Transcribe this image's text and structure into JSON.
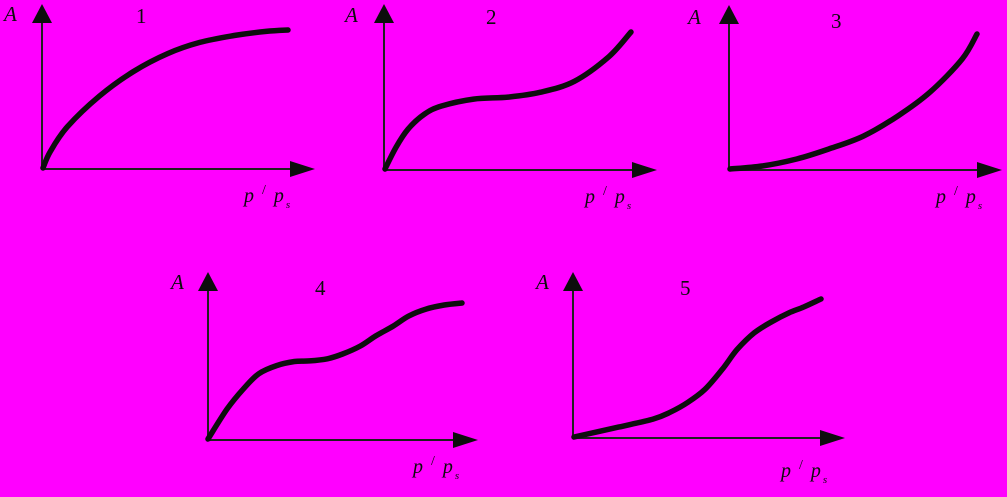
{
  "page": {
    "background_color": "#FF00FF",
    "ink_color": "#0d0d0d",
    "axis_color": "#1f1f1f"
  },
  "axis_labels": {
    "y": "A",
    "x_numerator": "p",
    "x_slash": "/",
    "x_denominator": "p",
    "x_subscript": "s"
  },
  "chart_data": [
    {
      "type": "line",
      "plot_number": "1",
      "ylabel": "A",
      "xlabel": "p / p_s",
      "axis_ticks": "none",
      "legend": "none",
      "x_range": [
        0,
        1
      ],
      "y_range": [
        0,
        1
      ],
      "curve_shape": "concave, steep initial rise then saturation plateau",
      "points_normalized": [
        [
          0,
          0
        ],
        [
          0.03,
          0.12
        ],
        [
          0.1,
          0.3
        ],
        [
          0.23,
          0.52
        ],
        [
          0.37,
          0.7
        ],
        [
          0.51,
          0.83
        ],
        [
          0.64,
          0.91
        ],
        [
          0.78,
          0.96
        ],
        [
          0.91,
          0.99
        ],
        [
          1,
          1
        ]
      ]
    },
    {
      "type": "line",
      "plot_number": "2",
      "ylabel": "A",
      "xlabel": "p / p_s",
      "axis_ticks": "none",
      "legend": "none",
      "x_range": [
        0,
        1
      ],
      "y_range": [
        0,
        1
      ],
      "curve_shape": "steep rise, middle plateau, steep concave-up rise at end",
      "points_normalized": [
        [
          0,
          0
        ],
        [
          0.045,
          0.16
        ],
        [
          0.093,
          0.29
        ],
        [
          0.16,
          0.4
        ],
        [
          0.23,
          0.46
        ],
        [
          0.36,
          0.51
        ],
        [
          0.5,
          0.525
        ],
        [
          0.63,
          0.56
        ],
        [
          0.77,
          0.64
        ],
        [
          0.91,
          0.82
        ],
        [
          1,
          1
        ]
      ]
    },
    {
      "type": "line",
      "plot_number": "3",
      "ylabel": "A",
      "xlabel": "p / p_s",
      "axis_ticks": "none",
      "legend": "none",
      "x_range": [
        0,
        1
      ],
      "y_range": [
        0,
        1
      ],
      "curve_shape": "convex, accelerating rise from near the x-axis",
      "points_normalized": [
        [
          0,
          0
        ],
        [
          0.13,
          0.022
        ],
        [
          0.27,
          0.074
        ],
        [
          0.4,
          0.148
        ],
        [
          0.54,
          0.244
        ],
        [
          0.68,
          0.393
        ],
        [
          0.81,
          0.57
        ],
        [
          0.94,
          0.815
        ],
        [
          1,
          1
        ]
      ]
    },
    {
      "type": "line",
      "plot_number": "4",
      "ylabel": "A",
      "xlabel": "p / p_s",
      "axis_ticks": "none",
      "legend": "none",
      "x_range": [
        0,
        1
      ],
      "y_range": [
        0,
        1
      ],
      "curve_shape": "steep rise, intermediate plateau, second rise, flat top",
      "points_normalized": [
        [
          0,
          0
        ],
        [
          0.075,
          0.22
        ],
        [
          0.14,
          0.37
        ],
        [
          0.2,
          0.48
        ],
        [
          0.27,
          0.54
        ],
        [
          0.34,
          0.57
        ],
        [
          0.4,
          0.574
        ],
        [
          0.47,
          0.59
        ],
        [
          0.53,
          0.625
        ],
        [
          0.6,
          0.684
        ],
        [
          0.66,
          0.757
        ],
        [
          0.73,
          0.831
        ],
        [
          0.79,
          0.904
        ],
        [
          0.86,
          0.956
        ],
        [
          0.93,
          0.985
        ],
        [
          1,
          1
        ]
      ]
    },
    {
      "type": "line",
      "plot_number": "5",
      "ylabel": "A",
      "xlabel": "p / p_s",
      "axis_ticks": "none",
      "legend": "none",
      "x_range": [
        0,
        1
      ],
      "y_range": [
        0,
        1
      ],
      "curve_shape": "slow shallow start, steep sigmoid rise, flattening near top",
      "points_normalized": [
        [
          0,
          0
        ],
        [
          0.18,
          0.072
        ],
        [
          0.32,
          0.13
        ],
        [
          0.39,
          0.18
        ],
        [
          0.46,
          0.25
        ],
        [
          0.53,
          0.345
        ],
        [
          0.6,
          0.49
        ],
        [
          0.66,
          0.633
        ],
        [
          0.73,
          0.755
        ],
        [
          0.8,
          0.835
        ],
        [
          0.87,
          0.899
        ],
        [
          0.93,
          0.942
        ],
        [
          1,
          1
        ]
      ]
    }
  ]
}
